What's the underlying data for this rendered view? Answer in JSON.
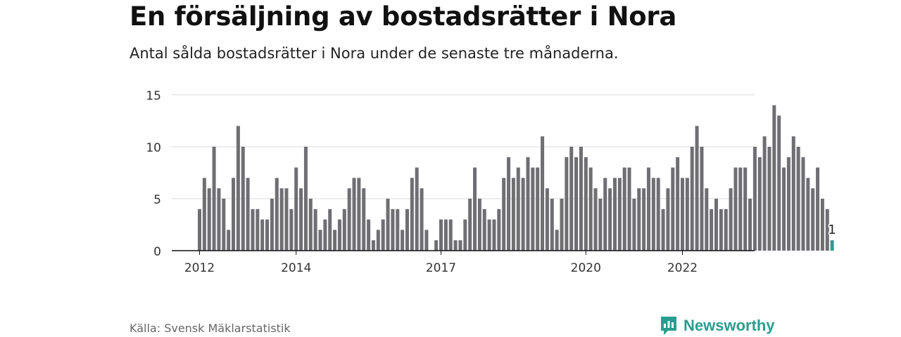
{
  "title": "En försäljning av bostadsrätter i Nora",
  "subtitle": "Antal sålda bostadsrätter i Nora under de senaste tre månaderna.",
  "source": "Källa: Svensk Mäklarstatistik",
  "brand": {
    "name": "Newsworthy",
    "icon": "newsworthy-logo-icon"
  },
  "colors": {
    "bar": "#6f6e73",
    "highlight": "#2a9d8f",
    "grid": "#d9d9d9",
    "axis": "#111111"
  },
  "chart_data": {
    "type": "bar",
    "title": "",
    "xlabel": "",
    "ylabel": "",
    "ylim": [
      0,
      15
    ],
    "yticks": [
      0,
      5,
      10,
      15
    ],
    "grid": true,
    "x_tick_labels": [
      {
        "label": "2012",
        "index": 0
      },
      {
        "label": "2014",
        "index": 20
      },
      {
        "label": "2017",
        "index": 50
      },
      {
        "label": "2020",
        "index": 80
      },
      {
        "label": "2022",
        "index": 100
      }
    ],
    "values": [
      4,
      7,
      6,
      10,
      6,
      5,
      2,
      7,
      12,
      10,
      7,
      4,
      4,
      3,
      3,
      5,
      7,
      6,
      6,
      4,
      8,
      6,
      10,
      5,
      4,
      2,
      3,
      4,
      2,
      3,
      4,
      6,
      7,
      7,
      6,
      3,
      1,
      2,
      3,
      5,
      4,
      4,
      2,
      4,
      7,
      8,
      6,
      2,
      0,
      1,
      3,
      3,
      3,
      1,
      1,
      3,
      5,
      8,
      5,
      4,
      3,
      3,
      4,
      7,
      9,
      7,
      8,
      7,
      9,
      8,
      8,
      11,
      6,
      5,
      2,
      5,
      9,
      10,
      9,
      10,
      9,
      8,
      6,
      5,
      7,
      6,
      7,
      7,
      8,
      8,
      5,
      6,
      6,
      8,
      7,
      7,
      4,
      6,
      8,
      9,
      7,
      7,
      10,
      12,
      10,
      6,
      4,
      5,
      4,
      4,
      6,
      8,
      8,
      8,
      5,
      10,
      9,
      11,
      10,
      14,
      13,
      8,
      9,
      11,
      10,
      9,
      7,
      6,
      8,
      5,
      4,
      1
    ],
    "highlight": {
      "index": 131,
      "value": 1,
      "label": "1"
    }
  }
}
